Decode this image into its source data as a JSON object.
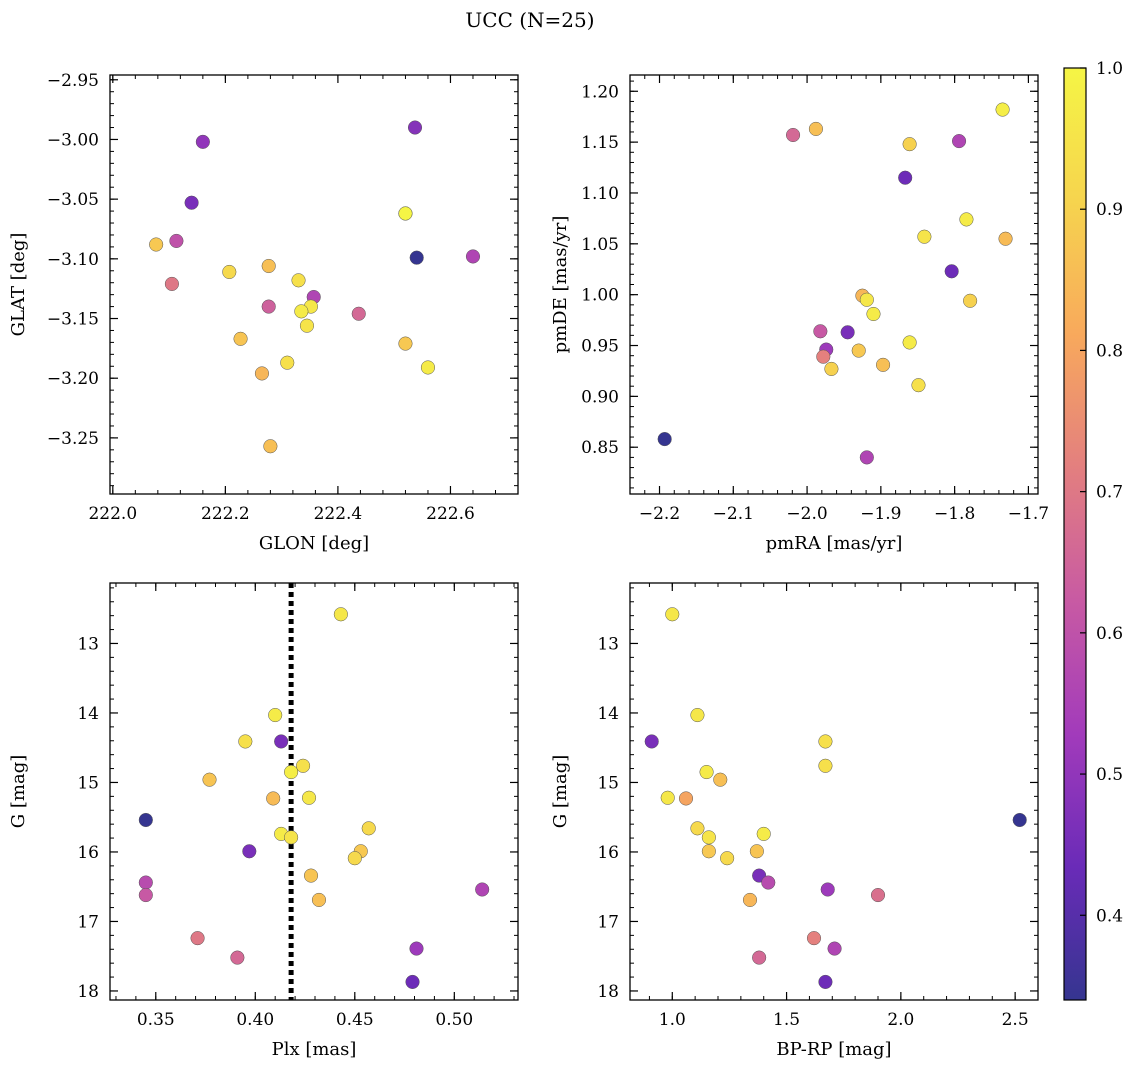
{
  "title": "UCC (N=25)",
  "colorbar": {
    "min": 0.34,
    "max": 1.0,
    "ticks": [
      "0.4",
      "0.5",
      "0.6",
      "0.7",
      "0.8",
      "0.9",
      "1.0"
    ],
    "tick_values": [
      0.4,
      0.5,
      0.6,
      0.7,
      0.8,
      0.9,
      1.0
    ],
    "colormap": "plasma",
    "colors": [
      "#353590",
      "#6a2bb8",
      "#a23bbb",
      "#c85aa3",
      "#e37f7f",
      "#f8a95c",
      "#f6d44e",
      "#f5f545"
    ]
  },
  "chart_data": [
    {
      "type": "scatter",
      "xlabel": "GLON [deg]",
      "ylabel": "GLAT [deg]",
      "xlim": [
        221.995,
        222.72
      ],
      "ylim": [
        -3.297,
        -2.946
      ],
      "yinvert": false,
      "xticks": [
        222.0,
        222.2,
        222.4,
        222.6
      ],
      "xtick_labels": [
        "222.0",
        "222.2",
        "222.4",
        "222.6"
      ],
      "yticks": [
        -2.95,
        -3.0,
        -3.05,
        -3.1,
        -3.15,
        -3.2,
        -3.25
      ],
      "ytick_labels": [
        "−2.95",
        "−3.00",
        "−3.05",
        "−3.10",
        "−3.15",
        "−3.20",
        "−3.25"
      ],
      "x": [
        222.16,
        222.537,
        222.14,
        222.52,
        222.077,
        222.113,
        222.54,
        222.64,
        222.207,
        222.277,
        222.105,
        222.33,
        222.357,
        222.277,
        222.352,
        222.335,
        222.437,
        222.345,
        222.227,
        222.52,
        222.31,
        222.56,
        222.265,
        222.28,
        222.52
      ],
      "y": [
        -3.002,
        -2.99,
        -3.053,
        -3.062,
        -3.088,
        -3.085,
        -3.099,
        -3.098,
        -3.111,
        -3.106,
        -3.121,
        -3.118,
        -3.132,
        -3.14,
        -3.14,
        -3.144,
        -3.146,
        -3.156,
        -3.167,
        -3.171,
        -3.187,
        -3.191,
        -3.196,
        -3.257,
        -3.062
      ],
      "c": [
        0.5,
        0.48,
        0.46,
        0.98,
        0.88,
        0.6,
        0.34,
        0.56,
        0.92,
        0.86,
        0.7,
        0.94,
        0.56,
        0.64,
        0.96,
        0.97,
        0.66,
        0.95,
        0.87,
        0.88,
        0.94,
        0.97,
        0.84,
        0.86,
        1.0
      ]
    },
    {
      "type": "scatter",
      "xlabel": "pmRA [mas/yr]",
      "ylabel": "pmDE [mas/yr]",
      "xlim": [
        -2.24,
        -1.687
      ],
      "ylim": [
        0.804,
        1.216
      ],
      "yinvert": false,
      "xticks": [
        -2.2,
        -2.1,
        -2.0,
        -1.9,
        -1.8,
        -1.7
      ],
      "xtick_labels": [
        "−2.2",
        "−2.1",
        "−2.0",
        "−1.9",
        "−1.8",
        "−1.7"
      ],
      "yticks": [
        0.85,
        0.9,
        0.95,
        1.0,
        1.05,
        1.1,
        1.15,
        1.2
      ],
      "ytick_labels": [
        "0.85",
        "0.90",
        "0.95",
        "1.00",
        "1.05",
        "1.10",
        "1.15",
        "1.20"
      ],
      "x": [
        -2.193,
        -2.019,
        -1.988,
        -1.735,
        -1.861,
        -1.794,
        -1.867,
        -1.841,
        -1.784,
        -1.731,
        -1.804,
        -1.925,
        -1.919,
        -1.91,
        -1.779,
        -1.945,
        -1.982,
        -1.974,
        -1.978,
        -1.93,
        -1.967,
        -1.897,
        -1.861,
        -1.849,
        -1.919
      ],
      "y": [
        0.858,
        1.157,
        1.163,
        1.182,
        1.148,
        1.151,
        1.115,
        1.057,
        1.074,
        1.055,
        1.023,
        0.999,
        0.995,
        0.981,
        0.994,
        0.963,
        0.964,
        0.946,
        0.939,
        0.945,
        0.927,
        0.931,
        0.953,
        0.911,
        0.84
      ],
      "c": [
        0.34,
        0.66,
        0.86,
        0.98,
        0.9,
        0.56,
        0.44,
        0.95,
        0.97,
        0.85,
        0.44,
        0.84,
        0.96,
        0.97,
        0.9,
        0.46,
        0.62,
        0.52,
        0.72,
        0.88,
        0.9,
        0.86,
        0.97,
        0.94,
        0.56
      ]
    },
    {
      "type": "scatter",
      "xlabel": "Plx [mas]",
      "ylabel": "G [mag]",
      "xlim": [
        0.327,
        0.532
      ],
      "ylim": [
        12.13,
        18.13
      ],
      "yinvert": true,
      "vline": 0.418,
      "xticks": [
        0.35,
        0.4,
        0.45,
        0.5
      ],
      "xtick_labels": [
        "0.35",
        "0.40",
        "0.45",
        "0.50"
      ],
      "yticks": [
        13,
        14,
        15,
        16,
        17,
        18
      ],
      "ytick_labels": [
        "13",
        "14",
        "15",
        "16",
        "17",
        "18"
      ],
      "x": [
        0.443,
        0.41,
        0.395,
        0.413,
        0.424,
        0.377,
        0.418,
        0.409,
        0.427,
        0.345,
        0.457,
        0.413,
        0.418,
        0.397,
        0.453,
        0.45,
        0.428,
        0.345,
        0.345,
        0.432,
        0.514,
        0.371,
        0.481,
        0.391,
        0.479
      ],
      "y": [
        12.58,
        14.03,
        14.41,
        14.41,
        14.76,
        14.96,
        14.85,
        15.23,
        15.22,
        15.54,
        15.66,
        15.74,
        15.79,
        15.99,
        15.99,
        16.09,
        16.34,
        16.44,
        16.62,
        16.69,
        16.54,
        17.24,
        17.39,
        17.52,
        17.87
      ],
      "c": [
        0.96,
        0.97,
        0.94,
        0.46,
        0.94,
        0.87,
        0.98,
        0.85,
        0.96,
        0.34,
        0.92,
        0.97,
        0.95,
        0.46,
        0.88,
        0.92,
        0.87,
        0.58,
        0.62,
        0.86,
        0.56,
        0.7,
        0.52,
        0.66,
        0.44
      ]
    },
    {
      "type": "scatter",
      "xlabel": "BP-RP [mag]",
      "ylabel": "G [mag]",
      "xlim": [
        0.815,
        2.6
      ],
      "ylim": [
        12.13,
        18.13
      ],
      "yinvert": true,
      "xticks": [
        1.0,
        1.5,
        2.0,
        2.5
      ],
      "xtick_labels": [
        "1.0",
        "1.5",
        "2.0",
        "2.5"
      ],
      "yticks": [
        13,
        14,
        15,
        16,
        17,
        18
      ],
      "ytick_labels": [
        "13",
        "14",
        "15",
        "16",
        "17",
        "18"
      ],
      "x": [
        1.0,
        1.11,
        0.91,
        1.67,
        1.67,
        1.15,
        1.21,
        0.98,
        1.06,
        2.52,
        1.11,
        1.16,
        1.4,
        1.16,
        1.37,
        1.24,
        1.38,
        1.42,
        1.68,
        1.9,
        1.34,
        1.62,
        1.71,
        1.38,
        1.67
      ],
      "y": [
        12.58,
        14.03,
        14.41,
        14.41,
        14.76,
        14.85,
        14.96,
        15.22,
        15.23,
        15.54,
        15.66,
        15.79,
        15.74,
        15.99,
        15.99,
        16.09,
        16.34,
        16.44,
        16.54,
        16.62,
        16.69,
        17.24,
        17.39,
        17.52,
        17.87
      ],
      "c": [
        0.96,
        0.96,
        0.46,
        0.94,
        0.94,
        0.97,
        0.86,
        0.96,
        0.8,
        0.34,
        0.92,
        0.95,
        0.97,
        0.88,
        0.87,
        0.92,
        0.46,
        0.58,
        0.52,
        0.68,
        0.84,
        0.72,
        0.56,
        0.66,
        0.44
      ]
    }
  ]
}
